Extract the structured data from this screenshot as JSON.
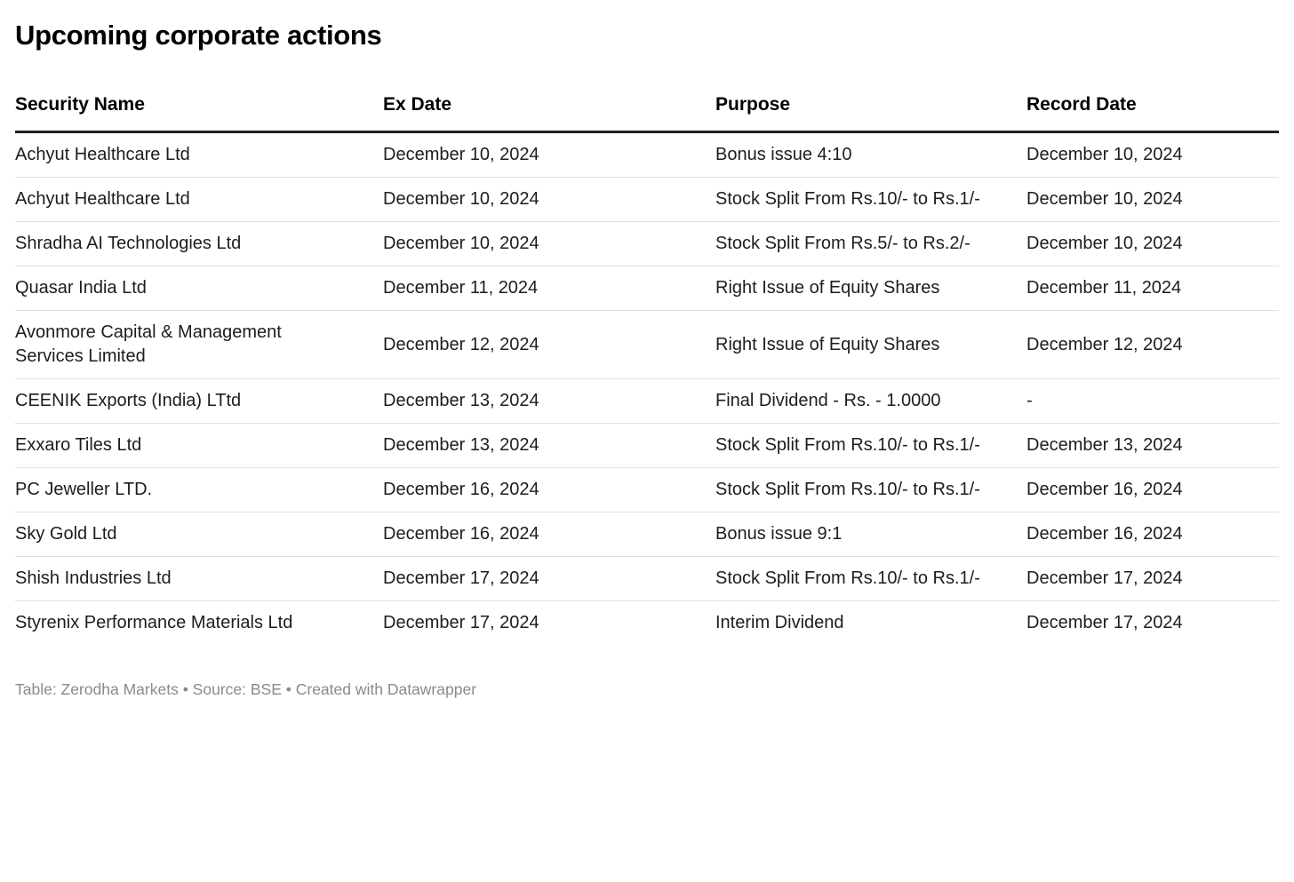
{
  "page": {
    "title": "Upcoming corporate actions",
    "footer": "Table: Zerodha Markets • Source: BSE • Created with Datawrapper"
  },
  "colors": {
    "text": "#1d1d1d",
    "title": "#000000",
    "header_border": "#212121",
    "row_divider": "#e0e0e0",
    "footer_text": "#8a8a8a",
    "background": "#ffffff"
  },
  "table": {
    "columns": [
      {
        "key": "security",
        "label": "Security Name"
      },
      {
        "key": "ex_date",
        "label": "Ex Date"
      },
      {
        "key": "purpose",
        "label": "Purpose"
      },
      {
        "key": "record_date",
        "label": "Record Date"
      }
    ],
    "rows": [
      {
        "security": "Achyut Healthcare Ltd",
        "ex_date": "December 10, 2024",
        "purpose": "Bonus issue 4:10",
        "record_date": "December 10, 2024"
      },
      {
        "security": "Achyut Healthcare Ltd",
        "ex_date": "December 10, 2024",
        "purpose": "Stock Split From Rs.10/- to Rs.1/-",
        "record_date": "December 10, 2024"
      },
      {
        "security": "Shradha AI Technologies Ltd",
        "ex_date": "December 10, 2024",
        "purpose": "Stock Split From Rs.5/- to Rs.2/-",
        "record_date": "December 10, 2024"
      },
      {
        "security": "Quasar India Ltd",
        "ex_date": "December 11, 2024",
        "purpose": "Right Issue of Equity Shares",
        "record_date": "December 11, 2024"
      },
      {
        "security": "Avonmore Capital & Management Services Limited",
        "ex_date": "December 12, 2024",
        "purpose": "Right Issue of Equity Shares",
        "record_date": "December 12, 2024"
      },
      {
        "security": "CEENIK Exports (India) LTtd",
        "ex_date": "December 13, 2024",
        "purpose": "Final Dividend - Rs. - 1.0000",
        "record_date": "-"
      },
      {
        "security": "Exxaro Tiles Ltd",
        "ex_date": "December 13, 2024",
        "purpose": "Stock Split From Rs.10/- to Rs.1/-",
        "record_date": "December 13, 2024"
      },
      {
        "security": "PC Jeweller LTD.",
        "ex_date": "December 16, 2024",
        "purpose": "Stock Split From Rs.10/- to Rs.1/-",
        "record_date": "December 16, 2024"
      },
      {
        "security": "Sky Gold Ltd",
        "ex_date": "December 16, 2024",
        "purpose": "Bonus issue 9:1",
        "record_date": "December 16, 2024"
      },
      {
        "security": "Shish Industries Ltd",
        "ex_date": "December 17, 2024",
        "purpose": "Stock Split From Rs.10/- to Rs.1/-",
        "record_date": "December 17, 2024"
      },
      {
        "security": "Styrenix Performance Materials Ltd",
        "ex_date": "December 17, 2024",
        "purpose": "Interim Dividend",
        "record_date": "December 17, 2024"
      }
    ]
  },
  "chart_data": {
    "type": "table",
    "title": "Upcoming corporate actions",
    "columns": [
      "Security Name",
      "Ex Date",
      "Purpose",
      "Record Date"
    ],
    "rows": [
      [
        "Achyut Healthcare Ltd",
        "December 10, 2024",
        "Bonus issue 4:10",
        "December 10, 2024"
      ],
      [
        "Achyut Healthcare Ltd",
        "December 10, 2024",
        "Stock Split From Rs.10/- to Rs.1/-",
        "December 10, 2024"
      ],
      [
        "Shradha AI Technologies Ltd",
        "December 10, 2024",
        "Stock Split From Rs.5/- to Rs.2/-",
        "December 10, 2024"
      ],
      [
        "Quasar India Ltd",
        "December 11, 2024",
        "Right Issue of Equity Shares",
        "December 11, 2024"
      ],
      [
        "Avonmore Capital & Management Services Limited",
        "December 12, 2024",
        "Right Issue of Equity Shares",
        "December 12, 2024"
      ],
      [
        "CEENIK Exports (India) LTtd",
        "December 13, 2024",
        "Final Dividend - Rs. - 1.0000",
        "-"
      ],
      [
        "Exxaro Tiles Ltd",
        "December 13, 2024",
        "Stock Split From Rs.10/- to Rs.1/-",
        "December 13, 2024"
      ],
      [
        "PC Jeweller LTD.",
        "December 16, 2024",
        "Stock Split From Rs.10/- to Rs.1/-",
        "December 16, 2024"
      ],
      [
        "Sky Gold Ltd",
        "December 16, 2024",
        "Bonus issue 9:1",
        "December 16, 2024"
      ],
      [
        "Shish Industries Ltd",
        "December 17, 2024",
        "Stock Split From Rs.10/- to Rs.1/-",
        "December 17, 2024"
      ],
      [
        "Styrenix Performance Materials Ltd",
        "December 17, 2024",
        "Interim Dividend",
        "December 17, 2024"
      ]
    ],
    "footnote": "Table: Zerodha Markets • Source: BSE • Created with Datawrapper"
  }
}
